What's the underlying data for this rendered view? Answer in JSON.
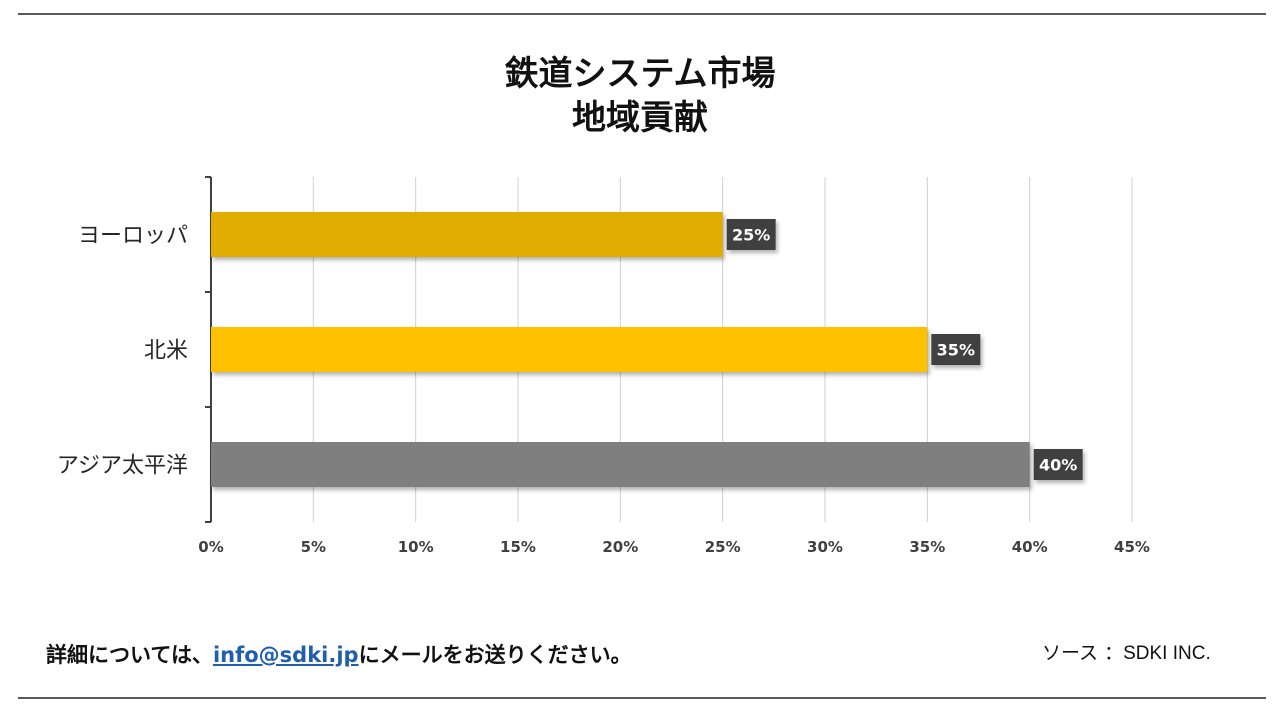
{
  "title": {
    "line1": "鉄道システム市場",
    "line2": "地域貢献"
  },
  "chart_data": {
    "type": "bar",
    "orientation": "horizontal",
    "categories": [
      "ヨーロッパ",
      "北米",
      "アジア太平洋"
    ],
    "values": [
      25,
      35,
      40
    ],
    "data_labels": [
      "25%",
      "35%",
      "40%"
    ],
    "colors": [
      "#e0ac00",
      "#ffc000",
      "#7f7f7f"
    ],
    "xlim": [
      0,
      45
    ],
    "xticks": [
      0,
      5,
      10,
      15,
      20,
      25,
      30,
      35,
      40,
      45
    ],
    "xtick_labels": [
      "0%",
      "5%",
      "10%",
      "15%",
      "20%",
      "25%",
      "30%",
      "35%",
      "40%",
      "45%"
    ],
    "grid": true,
    "xlabel": "",
    "ylabel": ""
  },
  "footer": {
    "contact_prefix": "詳細については、",
    "contact_email": "info@sdki.jp",
    "contact_suffix": "にメールをお送りください。",
    "source_label": "ソース ：",
    "source_name": "SDKI INC."
  }
}
